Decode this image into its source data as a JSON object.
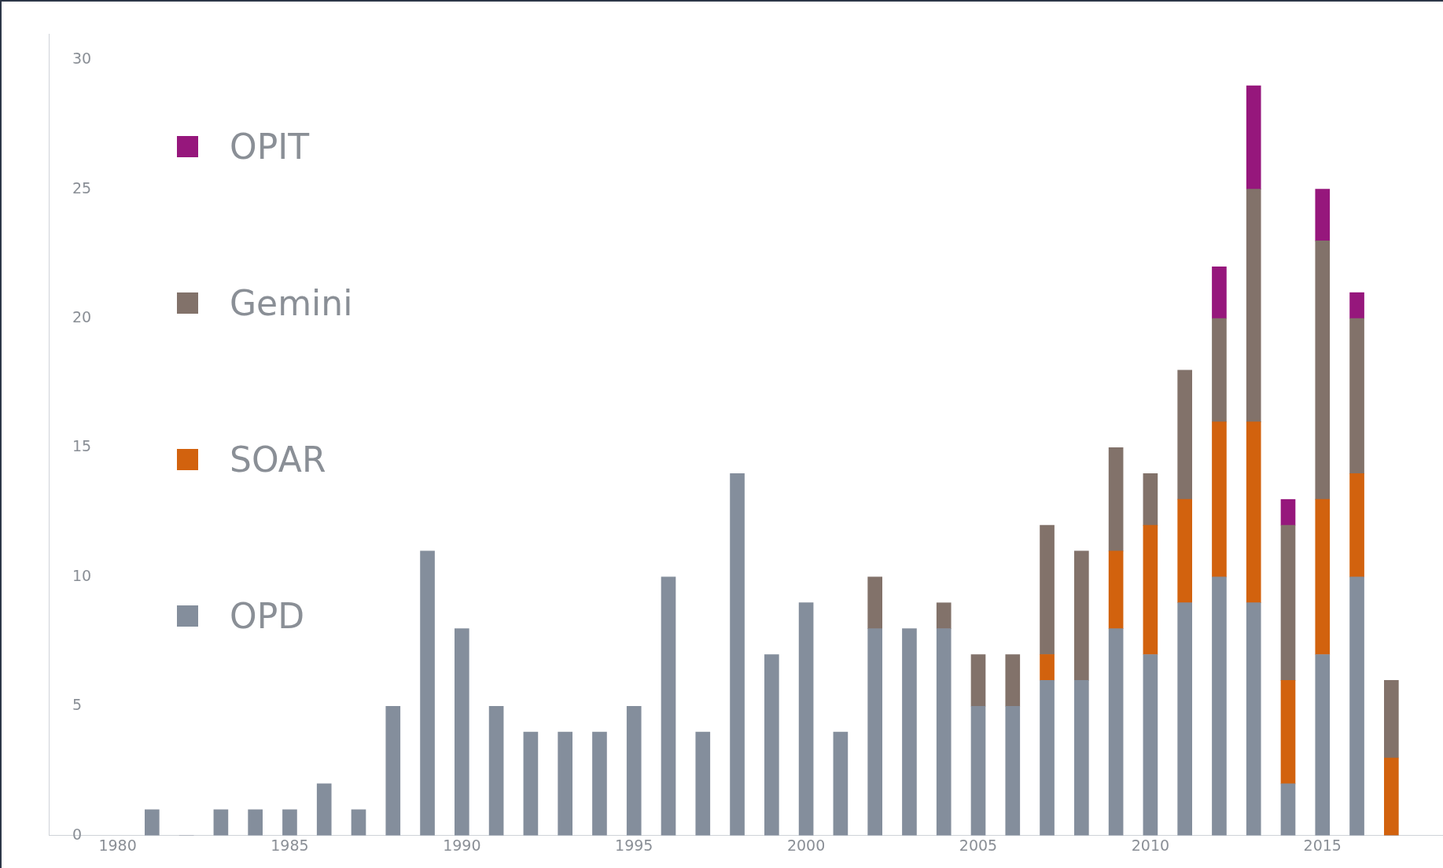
{
  "chart_data": {
    "type": "bar",
    "stacked": true,
    "legend": "top left",
    "grid": false,
    "x": [
      1981,
      1982,
      1983,
      1984,
      1985,
      1986,
      1987,
      1988,
      1989,
      1990,
      1991,
      1992,
      1993,
      1994,
      1995,
      1996,
      1997,
      1998,
      1999,
      2000,
      2001,
      2002,
      2003,
      2004,
      2005,
      2006,
      2007,
      2008,
      2009,
      2010,
      2011,
      2012,
      2013,
      2014,
      2015,
      2016,
      2017
    ],
    "xlim": [
      1978,
      2018.5
    ],
    "xticks": [
      1980,
      1985,
      1990,
      1995,
      2000,
      2005,
      2010,
      2015
    ],
    "ylim": [
      0,
      31
    ],
    "yticks": [
      0,
      5,
      10,
      15,
      20,
      25,
      30
    ],
    "series": [
      {
        "name": "OPD",
        "color": "#848e9c",
        "values": [
          1,
          0,
          1,
          1,
          1,
          2,
          1,
          5,
          11,
          8,
          5,
          4,
          4,
          4,
          5,
          10,
          4,
          14,
          7,
          9,
          4,
          8,
          8,
          8,
          5,
          5,
          6,
          6,
          8,
          7,
          9,
          10,
          9,
          2,
          7,
          10,
          0
        ]
      },
      {
        "name": "SOAR",
        "color": "#d2620e",
        "values": [
          null,
          null,
          null,
          null,
          null,
          null,
          null,
          null,
          null,
          null,
          null,
          null,
          null,
          null,
          null,
          null,
          null,
          null,
          null,
          null,
          null,
          null,
          null,
          null,
          null,
          null,
          1,
          null,
          3,
          5,
          4,
          6,
          7,
          4,
          6,
          4,
          3
        ]
      },
      {
        "name": "Gemini",
        "color": "#82726a",
        "values": [
          null,
          null,
          null,
          null,
          null,
          null,
          null,
          null,
          null,
          null,
          null,
          null,
          null,
          null,
          null,
          null,
          null,
          null,
          null,
          null,
          null,
          2,
          null,
          1,
          2,
          2,
          5,
          5,
          4,
          2,
          5,
          4,
          9,
          6,
          10,
          6,
          3
        ]
      },
      {
        "name": "OPIT",
        "color": "#96177c",
        "values": [
          null,
          null,
          null,
          null,
          null,
          null,
          null,
          null,
          null,
          null,
          null,
          null,
          null,
          null,
          null,
          null,
          null,
          null,
          null,
          null,
          null,
          null,
          null,
          null,
          null,
          null,
          null,
          null,
          null,
          null,
          null,
          2,
          4,
          1,
          2,
          1,
          null
        ]
      }
    ]
  }
}
